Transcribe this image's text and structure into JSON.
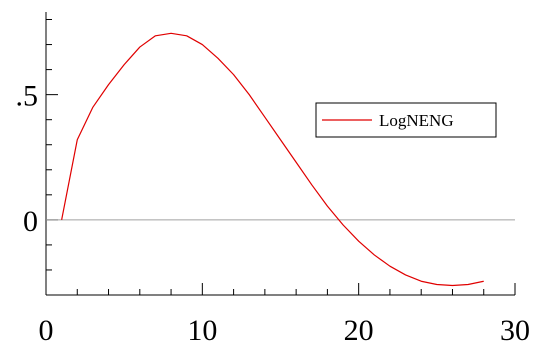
{
  "chart_data": {
    "type": "line",
    "title": "",
    "xlabel": "",
    "ylabel": "",
    "xlim": [
      0,
      30
    ],
    "ylim": [
      -0.3,
      0.83
    ],
    "x_ticks": [
      0,
      10,
      20,
      30
    ],
    "x_tick_labels": [
      "0",
      "10",
      "20",
      "30"
    ],
    "y_ticks": [
      0,
      0.5
    ],
    "y_tick_labels": [
      "0",
      ".5"
    ],
    "reference_line": {
      "y": 0,
      "color": "#a0a0a0"
    },
    "grid": false,
    "legend": {
      "placement": "right",
      "entries": [
        "LogNENG"
      ]
    },
    "series": [
      {
        "name": "LogNENG",
        "color": "#e00000",
        "x": [
          1,
          2,
          3,
          4,
          5,
          6,
          7,
          8,
          9,
          10,
          11,
          12,
          13,
          14,
          15,
          16,
          17,
          18,
          19,
          20,
          21,
          22,
          23,
          24,
          25,
          26,
          27,
          28
        ],
        "y": [
          0.0,
          0.32,
          0.45,
          0.54,
          0.62,
          0.69,
          0.735,
          0.745,
          0.735,
          0.7,
          0.645,
          0.58,
          0.5,
          0.41,
          0.32,
          0.23,
          0.14,
          0.055,
          -0.02,
          -0.085,
          -0.14,
          -0.185,
          -0.22,
          -0.245,
          -0.258,
          -0.262,
          -0.258,
          -0.245
        ]
      }
    ]
  }
}
